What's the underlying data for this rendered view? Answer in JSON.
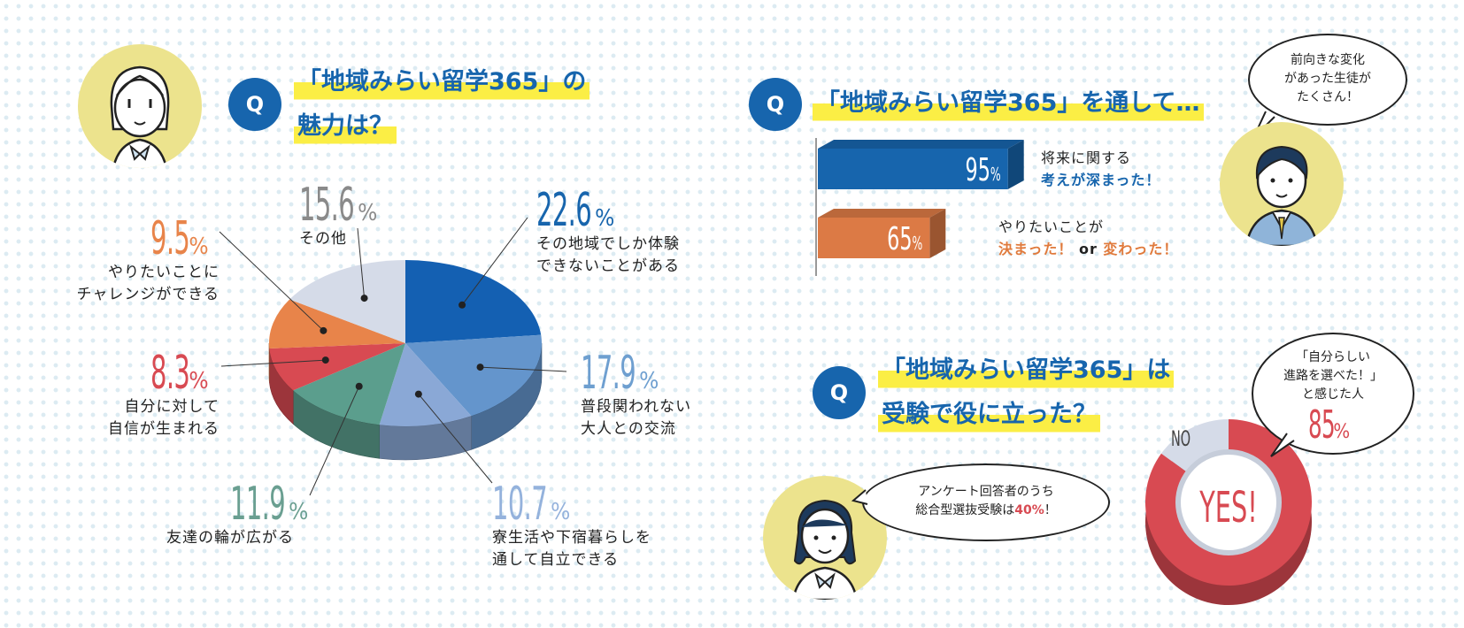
{
  "q1": {
    "badge": "Q",
    "title_line1": "「地域みらい留学365」の",
    "title_line2": "魅力は？"
  },
  "q2": {
    "badge": "Q",
    "title": "「地域みらい留学365」を通して…"
  },
  "q3": {
    "badge": "Q",
    "title_line1": "「地域みらい留学365」は",
    "title_line2": "受験で役に立った？"
  },
  "speech_right_top": {
    "line1": "前向きな変化",
    "line2": "があった生徒が",
    "line3": "たくさん！"
  },
  "speech_bottom_left": {
    "line1": "アンケート回答者のうち",
    "line2_prefix": "総合型選抜受験は",
    "line2_value": "40%",
    "line2_suffix": "！"
  },
  "speech_donut": {
    "line1": "「自分らしい",
    "line2": "進路を選べた！」",
    "line3": "と感じた人",
    "value": "85",
    "unit": "%"
  },
  "colors": {
    "accent_blue": "#1765ad",
    "highlight": "#fbee45",
    "orange": "#e07a3c",
    "red": "#d84a52",
    "avatar_bg": "#ece38d"
  },
  "chart_data": [
    {
      "type": "pie",
      "title": "「地域みらい留学365」の魅力は？",
      "slices": [
        {
          "label_line1": "その地域でしか体験",
          "label_line2": "できないことがある",
          "value": "22.6",
          "unit": "%",
          "color": "#1460b2",
          "label_color": "#1765ad"
        },
        {
          "label_line1": "普段関われない",
          "label_line2": "大人との交流",
          "value": "17.9",
          "unit": "%",
          "color": "#6495cc",
          "label_color": "#6e9fd0"
        },
        {
          "label_line1": "寮生活や下宿暮らしを",
          "label_line2": "通して自立できる",
          "value": "10.7",
          "unit": "%",
          "color": "#8aa8d6",
          "label_color": "#94b2dc"
        },
        {
          "label_line1": "友達の輪が広がる",
          "label_line2": "",
          "value": "11.9",
          "unit": "%",
          "color": "#5b9e8d",
          "label_color": "#6a9f91"
        },
        {
          "label_line1": "自分に対して",
          "label_line2": "自信が生まれる",
          "value": "8.3",
          "unit": "%",
          "color": "#d84a52",
          "label_color": "#d84a52"
        },
        {
          "label_line1": "やりたいことに",
          "label_line2": "チャレンジができる",
          "value": "9.5",
          "unit": "%",
          "color": "#e8844a",
          "label_color": "#e8844a"
        },
        {
          "label_line1": "その他",
          "label_line2": "",
          "value": "15.6",
          "unit": "%",
          "color": "#d5dbe8",
          "label_color": "#8a8a8a"
        }
      ]
    },
    {
      "type": "bar",
      "title": "「地域みらい留学365」を通して…",
      "bars": [
        {
          "value": "95",
          "unit": "%",
          "color": "#1765ad",
          "line1": "将来に関する",
          "line2": "考えが深まった！"
        },
        {
          "value": "65",
          "unit": "%",
          "color": "#dc7a45",
          "line1": "やりたいことが",
          "line2_a": "決まった！",
          "line2_b": " or ",
          "line2_c": "変わった！"
        }
      ],
      "xlim": [
        0,
        100
      ]
    },
    {
      "type": "pie",
      "title": "「地域みらい留学365」は受験で役に立った？",
      "segments": [
        {
          "label": "YES!",
          "value": 85,
          "color": "#d84a52"
        },
        {
          "label": "NO",
          "value": 15,
          "color": "#d5dbe8"
        }
      ]
    }
  ]
}
